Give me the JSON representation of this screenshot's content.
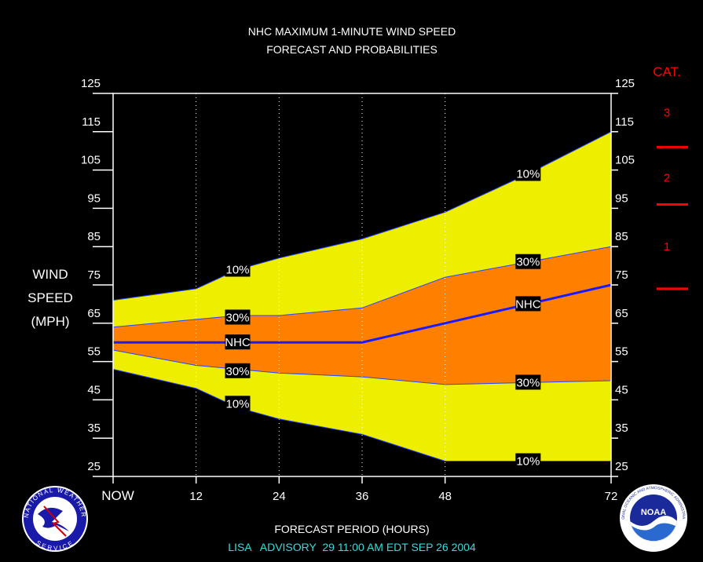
{
  "chart_data": {
    "type": "area",
    "title_line1": "NHC MAXIMUM 1-MINUTE WIND SPEED",
    "title_line2": "FORECAST AND PROBABILITIES",
    "ylabel_lines": [
      "WIND",
      "SPEED",
      "(MPH)"
    ],
    "xlabel": "FORECAST PERIOD (HOURS)",
    "advisory": "LISA   ADVISORY  29 11:00 AM EDT SEP 26 2004",
    "xlim": [
      0,
      72
    ],
    "ylim": [
      25,
      125
    ],
    "x_ticks": [
      0,
      12,
      24,
      36,
      48,
      72
    ],
    "x_tick_labels": [
      "NOW",
      "12",
      "24",
      "36",
      "48",
      "72"
    ],
    "y_ticks": [
      25,
      35,
      45,
      55,
      65,
      75,
      85,
      95,
      105,
      115,
      125
    ],
    "y_tick_labels": [
      "25",
      "35",
      "45",
      "55",
      "65",
      "75",
      "85",
      "95",
      "105",
      "115",
      "125"
    ],
    "x_gridlines": [
      12,
      24,
      36,
      48
    ],
    "colors": {
      "background": "#000000",
      "outer_band": "#eeee00",
      "inner_band": "#ff8000",
      "forecast_line": "#1a1aff",
      "band_edge": "#2244ff",
      "category_lines": "#ff0000",
      "advisory_text": "#33dddd"
    },
    "series": [
      {
        "name": "10%",
        "role": "upper_outer",
        "x": [
          0,
          12,
          18,
          24,
          36,
          48,
          60,
          72
        ],
        "values": [
          71,
          74,
          79,
          82,
          87,
          94,
          104,
          115
        ]
      },
      {
        "name": "30%",
        "role": "upper_inner",
        "x": [
          0,
          12,
          18,
          24,
          36,
          48,
          60,
          72
        ],
        "values": [
          64,
          66,
          67,
          67,
          69,
          77,
          81,
          85
        ]
      },
      {
        "name": "NHC",
        "role": "forecast",
        "x": [
          0,
          12,
          18,
          24,
          36,
          48,
          60,
          72
        ],
        "values": [
          60,
          60,
          60,
          60,
          60,
          65,
          70,
          75
        ]
      },
      {
        "name": "30%",
        "role": "lower_inner",
        "x": [
          0,
          12,
          18,
          24,
          36,
          48,
          60,
          72
        ],
        "values": [
          58,
          54,
          53,
          52,
          51,
          49,
          49.5,
          50
        ]
      },
      {
        "name": "10%",
        "role": "lower_outer",
        "x": [
          0,
          12,
          18,
          24,
          36,
          48,
          60,
          72
        ],
        "values": [
          53,
          48,
          43,
          40,
          36,
          29,
          29,
          29
        ]
      }
    ],
    "annotations": [
      {
        "text": "10%",
        "x": 18,
        "y": 79
      },
      {
        "text": "30%",
        "x": 18,
        "y": 66.5
      },
      {
        "text": "NHC",
        "x": 18,
        "y": 60
      },
      {
        "text": "30%",
        "x": 18,
        "y": 52.5
      },
      {
        "text": "10%",
        "x": 18,
        "y": 44
      },
      {
        "text": "10%",
        "x": 60,
        "y": 104
      },
      {
        "text": "30%",
        "x": 60,
        "y": 81
      },
      {
        "text": "NHC",
        "x": 60,
        "y": 70
      },
      {
        "text": "30%",
        "x": 60,
        "y": 49.5
      },
      {
        "text": "10%",
        "x": 60,
        "y": 29
      }
    ],
    "category_scale": {
      "title": "CAT.",
      "thresholds": [
        111,
        96,
        74
      ],
      "labels": [
        {
          "text": "3",
          "y": 120
        },
        {
          "text": "2",
          "y": 103
        },
        {
          "text": "1",
          "y": 85
        }
      ]
    }
  },
  "logos": {
    "left": {
      "name": "national-weather-service-logo",
      "text": "NATIONAL WEATHER SERVICE"
    },
    "right": {
      "name": "noaa-logo",
      "text": "NOAA"
    }
  }
}
